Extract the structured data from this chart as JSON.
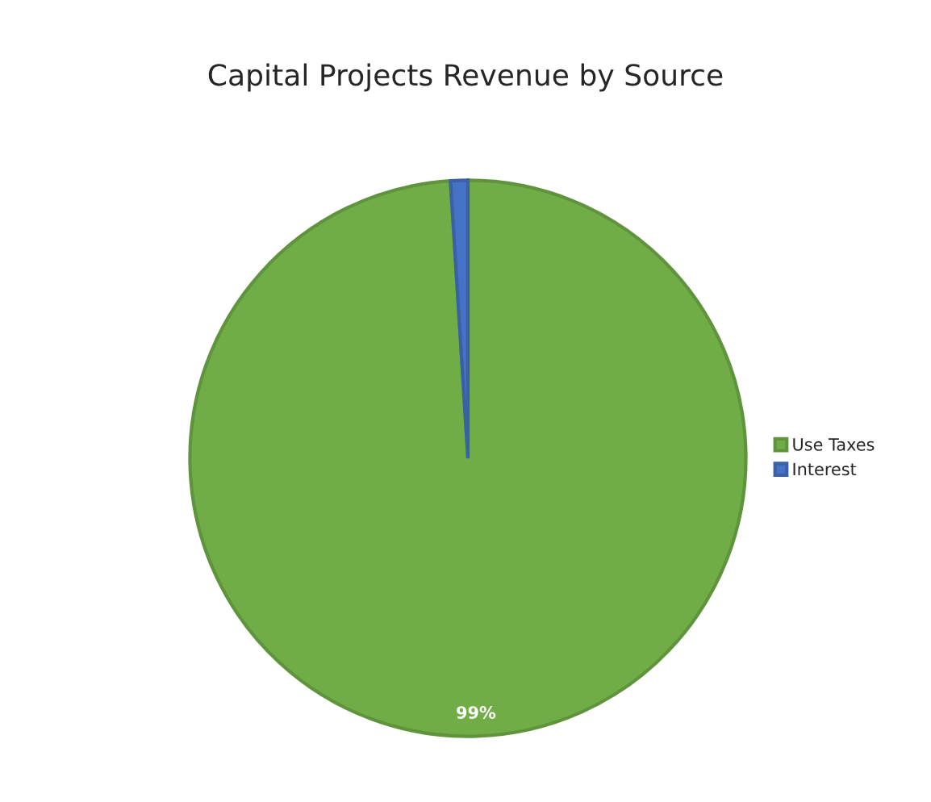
{
  "chart_data": {
    "type": "pie",
    "title": "Capital Projects Revenue by Source",
    "categories": [
      "Use Taxes",
      "Interest"
    ],
    "values": [
      99,
      1
    ],
    "colors": [
      "#70ad47",
      "#4472c4"
    ],
    "value_labels": [
      "99%",
      null
    ],
    "legend": "right"
  }
}
